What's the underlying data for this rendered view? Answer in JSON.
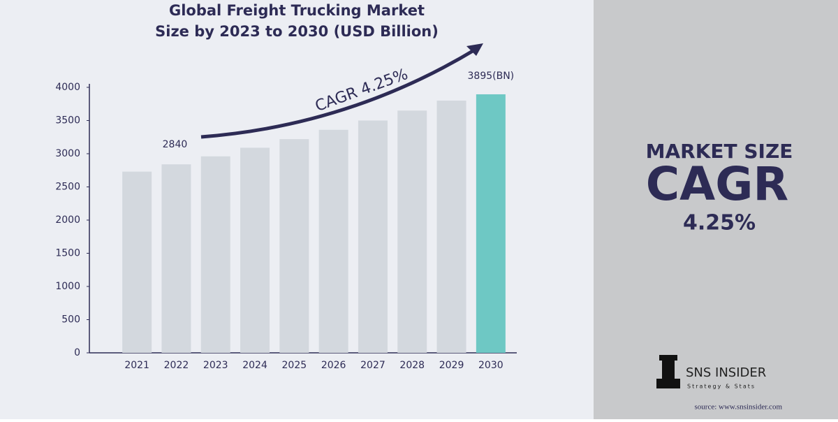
{
  "chart_data": {
    "type": "bar",
    "title": [
      "Global Freight Trucking Market",
      "Size by 2023 to 2030 (USD Billion)"
    ],
    "categories": [
      "2021",
      "2022",
      "2023",
      "2024",
      "2025",
      "2026",
      "2027",
      "2028",
      "2029",
      "2030"
    ],
    "values": [
      2730,
      2840,
      2960,
      3090,
      3220,
      3360,
      3500,
      3650,
      3800,
      3895
    ],
    "value_labels": [
      null,
      "2840",
      null,
      null,
      null,
      null,
      null,
      null,
      null,
      "3895(BN)"
    ],
    "colors": [
      "#d3d8de",
      "#d3d8de",
      "#d3d8de",
      "#d3d8de",
      "#d3d8de",
      "#d3d8de",
      "#d3d8de",
      "#d3d8de",
      "#d3d8de",
      "#6ec8c4"
    ],
    "ylim": [
      0,
      4000
    ],
    "yticks": [
      0,
      500,
      1000,
      1500,
      2000,
      2500,
      3000,
      3500,
      4000
    ],
    "annotation": "CAGR 4.25%"
  },
  "panel": {
    "heading": "MARKET SIZE",
    "big": "CAGR",
    "rate": "4.25%",
    "brand": "SNS INSIDER",
    "tagline": "Strategy & Stats",
    "source": "source: www.snsinsider.com"
  }
}
